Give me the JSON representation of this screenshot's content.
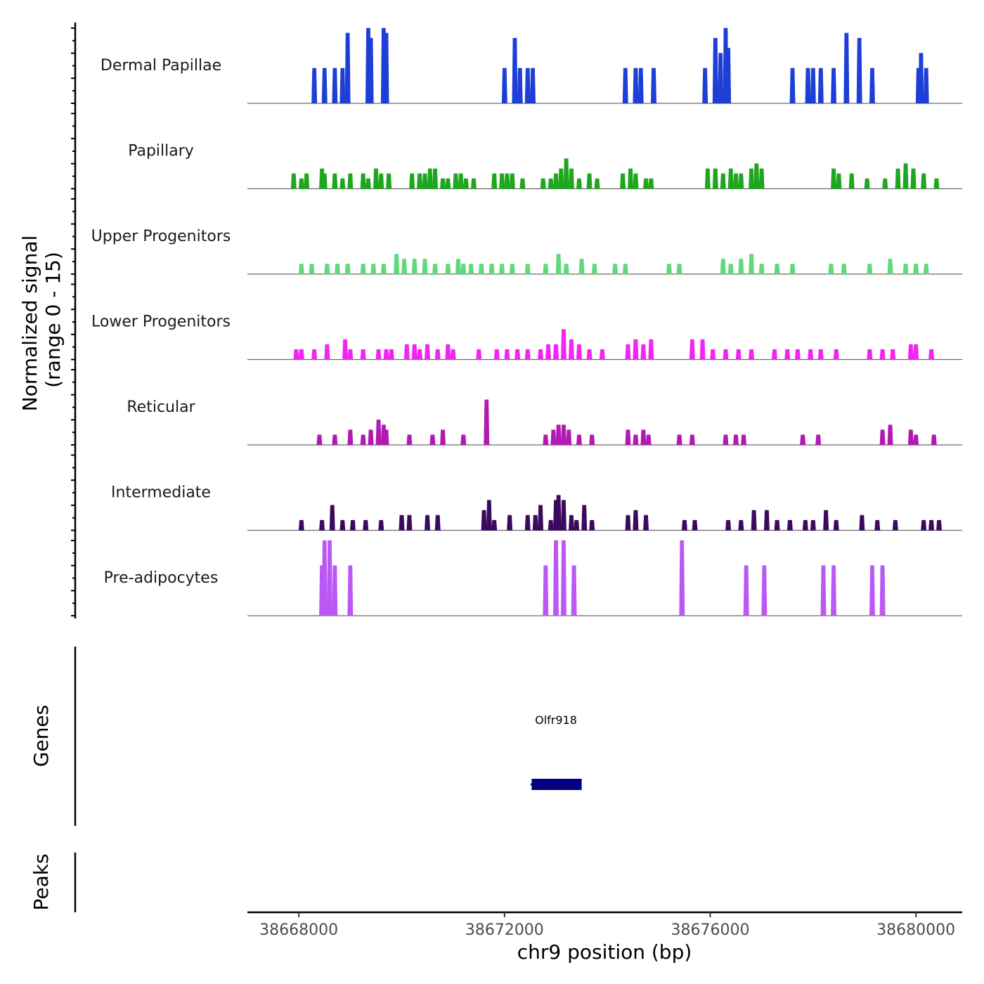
{
  "chart_data": {
    "type": "area",
    "chromosome": "chr9",
    "xlabel": "chr9 position (bp)",
    "ylabel_line1": "Normalized signal",
    "ylabel_line2": "(range 0 - 15)",
    "xlim": [
      38667000,
      38680900
    ],
    "ylim": [
      0,
      15
    ],
    "x_ticks": [
      38668000,
      38672000,
      38676000,
      38680000
    ],
    "x_tick_labels": [
      "38668000",
      "38672000",
      "38676000",
      "38680000"
    ],
    "bin_size_bp": 100,
    "series": [
      {
        "name": "Dermal Papillae",
        "color": "#1e3fd6",
        "peaks": [
          [
            38668300,
            7
          ],
          [
            38668500,
            7
          ],
          [
            38668700,
            7
          ],
          [
            38668850,
            7
          ],
          [
            38668950,
            14
          ],
          [
            38669350,
            15
          ],
          [
            38669400,
            13
          ],
          [
            38669650,
            15
          ],
          [
            38669700,
            14
          ],
          [
            38672000,
            7
          ],
          [
            38672200,
            13
          ],
          [
            38672300,
            7
          ],
          [
            38672450,
            7
          ],
          [
            38672550,
            7
          ],
          [
            38674350,
            7
          ],
          [
            38674550,
            7
          ],
          [
            38674650,
            7
          ],
          [
            38674900,
            7
          ],
          [
            38675900,
            7
          ],
          [
            38676100,
            13
          ],
          [
            38676200,
            10
          ],
          [
            38676300,
            15
          ],
          [
            38676350,
            11
          ],
          [
            38677600,
            7
          ],
          [
            38677900,
            7
          ],
          [
            38678000,
            7
          ],
          [
            38678150,
            7
          ],
          [
            38678400,
            7
          ],
          [
            38678650,
            14
          ],
          [
            38678900,
            13
          ],
          [
            38679150,
            7
          ],
          [
            38680050,
            7
          ],
          [
            38680100,
            10
          ],
          [
            38680200,
            7
          ]
        ]
      },
      {
        "name": "Papillary",
        "color": "#1fa61f",
        "peaks": [
          [
            38667900,
            3
          ],
          [
            38668050,
            2
          ],
          [
            38668150,
            3
          ],
          [
            38668450,
            4
          ],
          [
            38668500,
            3
          ],
          [
            38668700,
            3
          ],
          [
            38668850,
            2
          ],
          [
            38669000,
            3
          ],
          [
            38669250,
            3
          ],
          [
            38669350,
            2
          ],
          [
            38669500,
            4
          ],
          [
            38669600,
            3
          ],
          [
            38669750,
            3
          ],
          [
            38670200,
            3
          ],
          [
            38670350,
            3
          ],
          [
            38670450,
            3
          ],
          [
            38670550,
            4
          ],
          [
            38670650,
            4
          ],
          [
            38670800,
            2
          ],
          [
            38670900,
            2
          ],
          [
            38671050,
            3
          ],
          [
            38671150,
            3
          ],
          [
            38671250,
            2
          ],
          [
            38671400,
            2
          ],
          [
            38671800,
            3
          ],
          [
            38671950,
            3
          ],
          [
            38672050,
            3
          ],
          [
            38672150,
            3
          ],
          [
            38672350,
            2
          ],
          [
            38672750,
            2
          ],
          [
            38672900,
            2
          ],
          [
            38673000,
            3
          ],
          [
            38673100,
            4
          ],
          [
            38673200,
            6
          ],
          [
            38673300,
            4
          ],
          [
            38673450,
            2
          ],
          [
            38673650,
            3
          ],
          [
            38673800,
            2
          ],
          [
            38674300,
            3
          ],
          [
            38674450,
            4
          ],
          [
            38674550,
            3
          ],
          [
            38674750,
            2
          ],
          [
            38674850,
            2
          ],
          [
            38675950,
            4
          ],
          [
            38676100,
            4
          ],
          [
            38676250,
            3
          ],
          [
            38676400,
            4
          ],
          [
            38676500,
            3
          ],
          [
            38676600,
            3
          ],
          [
            38676800,
            4
          ],
          [
            38676900,
            5
          ],
          [
            38677000,
            4
          ],
          [
            38678400,
            4
          ],
          [
            38678500,
            3
          ],
          [
            38678750,
            3
          ],
          [
            38679050,
            2
          ],
          [
            38679400,
            2
          ],
          [
            38679650,
            4
          ],
          [
            38679800,
            5
          ],
          [
            38679950,
            4
          ],
          [
            38680150,
            3
          ],
          [
            38680400,
            2
          ]
        ]
      },
      {
        "name": "Upper Progenitors",
        "color": "#5fd97a",
        "peaks": [
          [
            38668050,
            2
          ],
          [
            38668250,
            2
          ],
          [
            38668550,
            2
          ],
          [
            38668750,
            2
          ],
          [
            38668950,
            2
          ],
          [
            38669250,
            2
          ],
          [
            38669450,
            2
          ],
          [
            38669650,
            2
          ],
          [
            38669900,
            4
          ],
          [
            38670050,
            3
          ],
          [
            38670250,
            3
          ],
          [
            38670450,
            3
          ],
          [
            38670650,
            2
          ],
          [
            38670900,
            2
          ],
          [
            38671100,
            3
          ],
          [
            38671200,
            2
          ],
          [
            38671350,
            2
          ],
          [
            38671550,
            2
          ],
          [
            38671750,
            2
          ],
          [
            38671950,
            2
          ],
          [
            38672150,
            2
          ],
          [
            38672450,
            2
          ],
          [
            38672800,
            2
          ],
          [
            38673050,
            4
          ],
          [
            38673200,
            2
          ],
          [
            38673500,
            3
          ],
          [
            38673750,
            2
          ],
          [
            38674150,
            2
          ],
          [
            38674350,
            2
          ],
          [
            38675200,
            2
          ],
          [
            38675400,
            2
          ],
          [
            38676250,
            3
          ],
          [
            38676400,
            2
          ],
          [
            38676600,
            3
          ],
          [
            38676800,
            4
          ],
          [
            38677000,
            2
          ],
          [
            38677300,
            2
          ],
          [
            38677600,
            2
          ],
          [
            38678350,
            2
          ],
          [
            38678600,
            2
          ],
          [
            38679100,
            2
          ],
          [
            38679500,
            3
          ],
          [
            38679800,
            2
          ],
          [
            38680000,
            2
          ],
          [
            38680200,
            2
          ]
        ]
      },
      {
        "name": "Lower Progenitors",
        "color": "#f126f1",
        "peaks": [
          [
            38667950,
            2
          ],
          [
            38668050,
            2
          ],
          [
            38668300,
            2
          ],
          [
            38668550,
            3
          ],
          [
            38668900,
            4
          ],
          [
            38669000,
            2
          ],
          [
            38669250,
            2
          ],
          [
            38669550,
            2
          ],
          [
            38669700,
            2
          ],
          [
            38669800,
            2
          ],
          [
            38670100,
            3
          ],
          [
            38670250,
            3
          ],
          [
            38670350,
            2
          ],
          [
            38670500,
            3
          ],
          [
            38670700,
            2
          ],
          [
            38670900,
            3
          ],
          [
            38671000,
            2
          ],
          [
            38671500,
            2
          ],
          [
            38671850,
            2
          ],
          [
            38672050,
            2
          ],
          [
            38672250,
            2
          ],
          [
            38672450,
            2
          ],
          [
            38672700,
            2
          ],
          [
            38672850,
            3
          ],
          [
            38673000,
            3
          ],
          [
            38673150,
            6
          ],
          [
            38673300,
            4
          ],
          [
            38673450,
            3
          ],
          [
            38673650,
            2
          ],
          [
            38673900,
            2
          ],
          [
            38674400,
            3
          ],
          [
            38674550,
            4
          ],
          [
            38674700,
            3
          ],
          [
            38674850,
            4
          ],
          [
            38675650,
            4
          ],
          [
            38675850,
            4
          ],
          [
            38676050,
            2
          ],
          [
            38676300,
            2
          ],
          [
            38676550,
            2
          ],
          [
            38676800,
            2
          ],
          [
            38677250,
            2
          ],
          [
            38677500,
            2
          ],
          [
            38677700,
            2
          ],
          [
            38677950,
            2
          ],
          [
            38678150,
            2
          ],
          [
            38678450,
            2
          ],
          [
            38679100,
            2
          ],
          [
            38679350,
            2
          ],
          [
            38679550,
            2
          ],
          [
            38679900,
            3
          ],
          [
            38680000,
            3
          ],
          [
            38680300,
            2
          ]
        ]
      },
      {
        "name": "Reticular",
        "color": "#b11ab1",
        "peaks": [
          [
            38668400,
            2
          ],
          [
            38668700,
            2
          ],
          [
            38669000,
            3
          ],
          [
            38669250,
            2
          ],
          [
            38669400,
            3
          ],
          [
            38669550,
            5
          ],
          [
            38669650,
            4
          ],
          [
            38669700,
            3
          ],
          [
            38670150,
            2
          ],
          [
            38670600,
            2
          ],
          [
            38670800,
            3
          ],
          [
            38671200,
            2
          ],
          [
            38671650,
            9
          ],
          [
            38672800,
            2
          ],
          [
            38672950,
            3
          ],
          [
            38673050,
            4
          ],
          [
            38673150,
            4
          ],
          [
            38673250,
            3
          ],
          [
            38673450,
            2
          ],
          [
            38673700,
            2
          ],
          [
            38674400,
            3
          ],
          [
            38674550,
            2
          ],
          [
            38674700,
            3
          ],
          [
            38674800,
            2
          ],
          [
            38675400,
            2
          ],
          [
            38675650,
            2
          ],
          [
            38676300,
            2
          ],
          [
            38676500,
            2
          ],
          [
            38676650,
            2
          ],
          [
            38677800,
            2
          ],
          [
            38678100,
            2
          ],
          [
            38679350,
            3
          ],
          [
            38679500,
            4
          ],
          [
            38679900,
            3
          ],
          [
            38680000,
            2
          ],
          [
            38680350,
            2
          ]
        ]
      },
      {
        "name": "Intermediate",
        "color": "#3b0a5e",
        "peaks": [
          [
            38668050,
            2
          ],
          [
            38668450,
            2
          ],
          [
            38668650,
            5
          ],
          [
            38668850,
            2
          ],
          [
            38669050,
            2
          ],
          [
            38669300,
            2
          ],
          [
            38669600,
            2
          ],
          [
            38670000,
            3
          ],
          [
            38670150,
            3
          ],
          [
            38670500,
            3
          ],
          [
            38670700,
            3
          ],
          [
            38671600,
            4
          ],
          [
            38671700,
            6
          ],
          [
            38671800,
            2
          ],
          [
            38672100,
            3
          ],
          [
            38672450,
            3
          ],
          [
            38672600,
            3
          ],
          [
            38672700,
            5
          ],
          [
            38672900,
            2
          ],
          [
            38673000,
            6
          ],
          [
            38673050,
            7
          ],
          [
            38673150,
            6
          ],
          [
            38673300,
            3
          ],
          [
            38673400,
            2
          ],
          [
            38673550,
            5
          ],
          [
            38673700,
            2
          ],
          [
            38674400,
            3
          ],
          [
            38674550,
            4
          ],
          [
            38674750,
            3
          ],
          [
            38675500,
            2
          ],
          [
            38675700,
            2
          ],
          [
            38676350,
            2
          ],
          [
            38676600,
            2
          ],
          [
            38676850,
            4
          ],
          [
            38677100,
            4
          ],
          [
            38677300,
            2
          ],
          [
            38677550,
            2
          ],
          [
            38677850,
            2
          ],
          [
            38678000,
            2
          ],
          [
            38678250,
            4
          ],
          [
            38678450,
            2
          ],
          [
            38678950,
            3
          ],
          [
            38679250,
            2
          ],
          [
            38679600,
            2
          ],
          [
            38680150,
            2
          ],
          [
            38680300,
            2
          ],
          [
            38680450,
            2
          ]
        ]
      },
      {
        "name": "Pre-adipocytes",
        "color": "#bb58f5",
        "peaks": [
          [
            38668450,
            10
          ],
          [
            38668500,
            15
          ],
          [
            38668600,
            15
          ],
          [
            38668700,
            10
          ],
          [
            38669000,
            10
          ],
          [
            38672800,
            10
          ],
          [
            38673000,
            15
          ],
          [
            38673150,
            15
          ],
          [
            38673350,
            10
          ],
          [
            38675450,
            15
          ],
          [
            38676700,
            10
          ],
          [
            38677050,
            10
          ],
          [
            38678200,
            10
          ],
          [
            38678400,
            10
          ],
          [
            38679150,
            10
          ],
          [
            38679350,
            10
          ]
        ]
      }
    ],
    "genes": [
      {
        "name": "Olfr918",
        "start": 38672500,
        "end": 38673500,
        "strand": "-",
        "color": "#000080"
      }
    ],
    "peaks_track": [],
    "panel_titles": {
      "genes": "Genes",
      "peaks": "Peaks"
    }
  }
}
